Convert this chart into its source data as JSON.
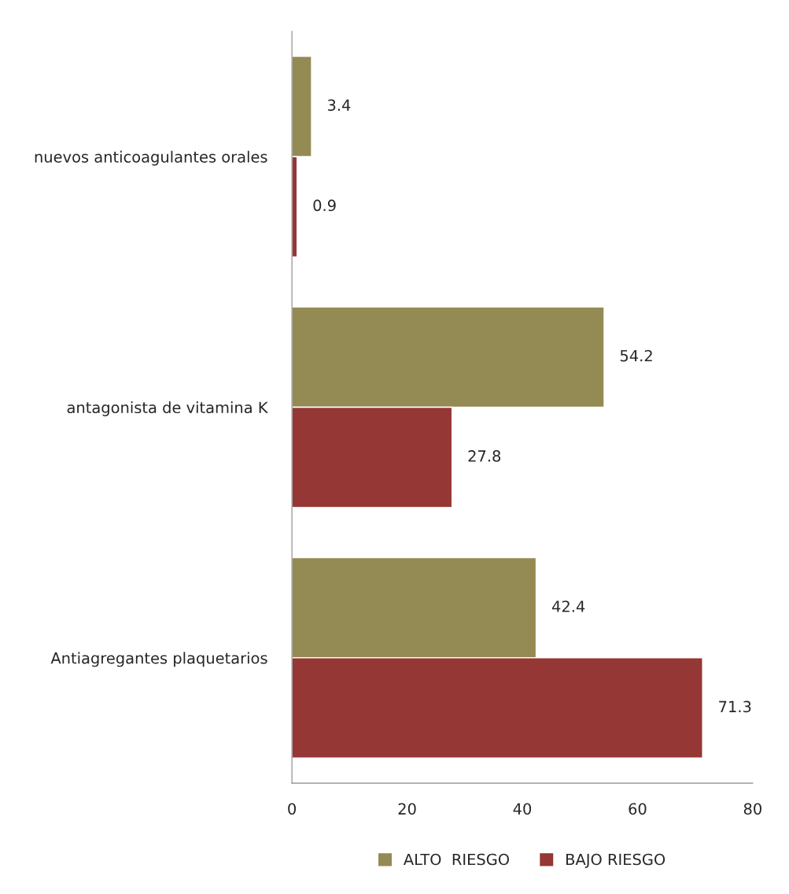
{
  "chart_data": {
    "type": "bar",
    "orientation": "horizontal",
    "categories": [
      "nuevos anticoagulantes orales",
      "antagonista de vitamina K",
      "Antiagregantes plaquetarios"
    ],
    "series": [
      {
        "name": "ALTO  RIESGO",
        "color": "#948a54",
        "values": [
          3.4,
          54.2,
          42.4
        ]
      },
      {
        "name": "BAJO RIESGO",
        "color": "#953735",
        "values": [
          0.9,
          27.8,
          71.3
        ]
      }
    ],
    "xlim": [
      0,
      80
    ],
    "xticks": [
      0,
      20,
      40,
      60,
      80
    ],
    "data_labels": true,
    "grid": false,
    "legend": "bottom"
  }
}
